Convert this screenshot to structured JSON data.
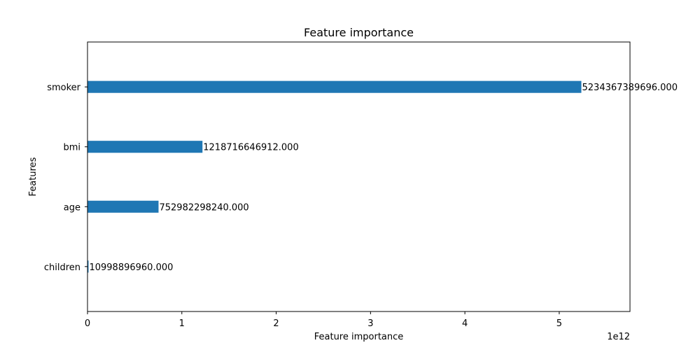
{
  "chart_data": {
    "type": "bar",
    "orientation": "horizontal",
    "title": "Feature importance",
    "xlabel": "Feature importance",
    "ylabel": "Features",
    "categories": [
      "children",
      "age",
      "bmi",
      "smoker"
    ],
    "values": [
      10998896960.0,
      752982298240.0,
      1218716646912.0,
      5234367389696.0
    ],
    "value_labels": [
      "10998896960.000",
      "752982298240.000",
      "1218716646912.000",
      "5234367389696.000"
    ],
    "xlim": [
      0,
      5750000000000.0
    ],
    "ylim": [
      -0.75,
      3.75
    ],
    "xticks": [
      0,
      1,
      2,
      3,
      4,
      5
    ],
    "xtick_labels": [
      "0",
      "1",
      "2",
      "3",
      "4",
      "5"
    ],
    "x_scale_label": "1e12",
    "xtick_multiplier": 1000000000000.0,
    "grid": false,
    "bar_color": "#1f77b4"
  }
}
